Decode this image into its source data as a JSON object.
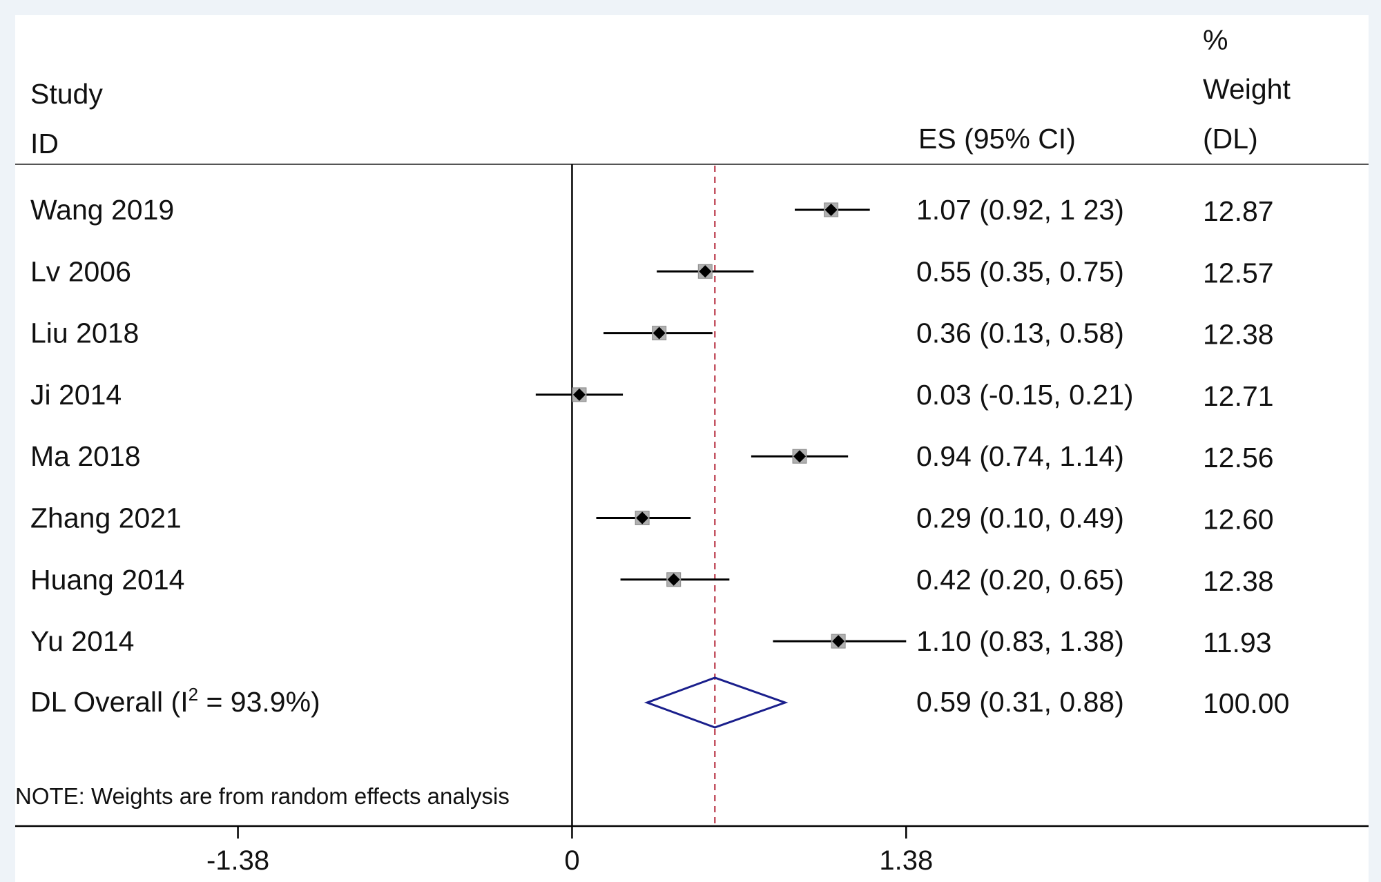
{
  "chart_data": {
    "type": "forest",
    "header": {
      "study_line1": "Study",
      "study_line2": "ID",
      "es_label": "ES (95% CI)",
      "weight_line1": "%",
      "weight_line2": "Weight",
      "weight_line3": "(DL)"
    },
    "studies": [
      {
        "name": "Wang 2019",
        "es": 1.07,
        "lo": 0.92,
        "hi": 1.23,
        "ci_text": "1.07 (0.92, 1 23)",
        "weight": "12.87"
      },
      {
        "name": "Lv 2006",
        "es": 0.55,
        "lo": 0.35,
        "hi": 0.75,
        "ci_text": "0.55 (0.35, 0.75)",
        "weight": "12.57"
      },
      {
        "name": "Liu 2018",
        "es": 0.36,
        "lo": 0.13,
        "hi": 0.58,
        "ci_text": "0.36 (0.13, 0.58)",
        "weight": "12.38"
      },
      {
        "name": "Ji 2014",
        "es": 0.03,
        "lo": -0.15,
        "hi": 0.21,
        "ci_text": "0.03 (-0.15, 0.21)",
        "weight": "12.71"
      },
      {
        "name": "Ma 2018",
        "es": 0.94,
        "lo": 0.74,
        "hi": 1.14,
        "ci_text": "0.94 (0.74, 1.14)",
        "weight": "12.56"
      },
      {
        "name": "Zhang 2021",
        "es": 0.29,
        "lo": 0.1,
        "hi": 0.49,
        "ci_text": "0.29 (0.10, 0.49)",
        "weight": "12.60"
      },
      {
        "name": "Huang 2014",
        "es": 0.42,
        "lo": 0.2,
        "hi": 0.65,
        "ci_text": "0.42 (0.20, 0.65)",
        "weight": "12.38"
      },
      {
        "name": "Yu 2014",
        "es": 1.1,
        "lo": 0.83,
        "hi": 1.38,
        "ci_text": "1.10 (0.83, 1.38)",
        "weight": "11.93"
      }
    ],
    "overall": {
      "label_prefix": "DL Overall (I",
      "label_sup": "2",
      "label_suffix": " = 93.9%)",
      "es": 0.59,
      "lo": 0.31,
      "hi": 0.88,
      "ci_text": "0.59 (0.31, 0.88)",
      "weight": "100.00"
    },
    "note": "NOTE: Weights are from random effects analysis",
    "x_ticks": [
      -1.38,
      0,
      1.38
    ],
    "x_tick_labels": [
      "-1.38",
      "0",
      "1.38"
    ],
    "null_line": 0,
    "xlim": [
      -2.3,
      3.29
    ],
    "colors": {
      "diamond": "#1a1f8c",
      "overall_line": "#b22234",
      "point": "#000000",
      "box": "#b0b0b0"
    }
  }
}
